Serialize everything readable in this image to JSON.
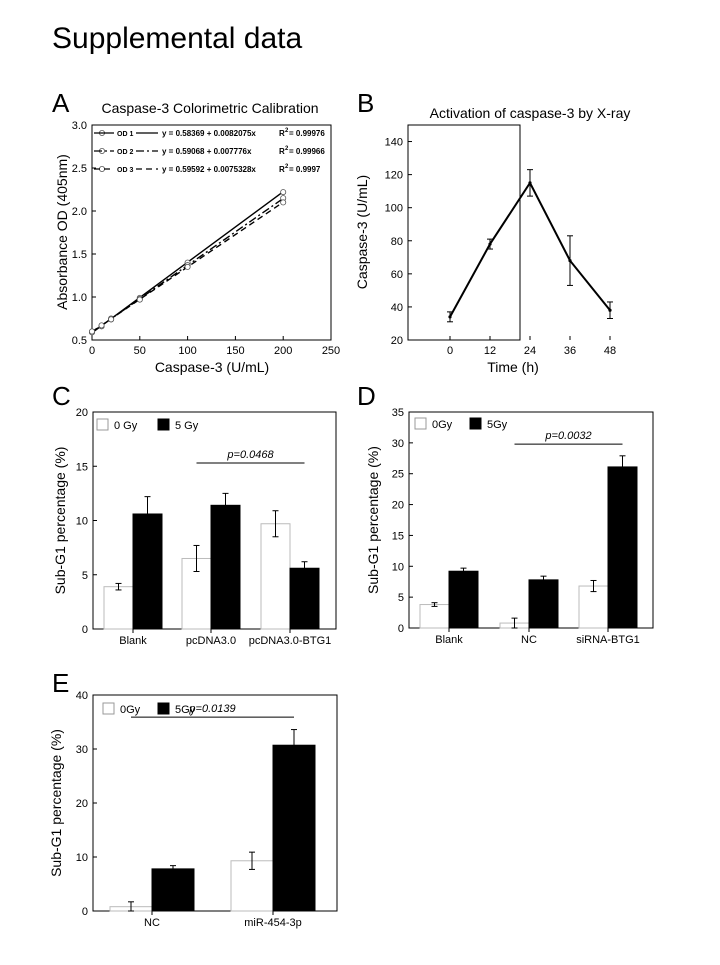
{
  "page_title": "Supplemental data",
  "chart_data": [
    {
      "panel": "A",
      "type": "scatter",
      "title": "Caspase-3 Colorimetric Calibration",
      "xlabel": "Caspase-3 (U/mL)",
      "ylabel": "Absorbance OD (405nm)",
      "xlim": [
        0,
        250
      ],
      "ylim": [
        0.5,
        3.0
      ],
      "xticks": [
        "0",
        "50",
        "100",
        "150",
        "200",
        "250"
      ],
      "yticks": [
        "0.5",
        "1.0",
        "1.5",
        "2.0",
        "2.5",
        "3.0"
      ],
      "grid": false,
      "legend_position": "top-left",
      "x": [
        0,
        10,
        20,
        50,
        100,
        200
      ],
      "series": [
        {
          "name": "OD 1",
          "equation": "y = 0.58369 + 0.0082075x",
          "r2": "R",
          "r2_sup": "2",
          "r2_value": "= 0.99976",
          "dash": "",
          "intercept": 0.58369,
          "slope": 0.0082075,
          "values": [
            0.59,
            0.66,
            0.75,
            0.99,
            1.4,
            2.22
          ]
        },
        {
          "name": "OD 2",
          "equation": "y = 0.59068 + 0.007776x",
          "r2": "R",
          "r2_sup": "2",
          "r2_value": "= 0.99966",
          "dash": "8 3 2 3",
          "intercept": 0.59068,
          "slope": 0.007776,
          "values": [
            0.59,
            0.66,
            0.74,
            0.98,
            1.37,
            2.15
          ]
        },
        {
          "name": "OD 3",
          "equation": "y = 0.59592 + 0.0075328x",
          "r2": "R",
          "r2_sup": "2",
          "r2_value": "= 0.9997",
          "dash": "6 4",
          "intercept": 0.59592,
          "slope": 0.0075328,
          "values": [
            0.6,
            0.67,
            0.74,
            0.97,
            1.35,
            2.1
          ]
        }
      ]
    },
    {
      "panel": "B",
      "type": "line",
      "title": "Activation of caspase-3 by X-ray",
      "xlabel": "Time (h)",
      "ylabel": "Caspase-3 (U/mL)",
      "ylim": [
        20,
        150
      ],
      "yticks": [
        "20",
        "40",
        "60",
        "80",
        "100",
        "120",
        "140"
      ],
      "categories": [
        "0",
        "12",
        "24",
        "36",
        "48"
      ],
      "values": [
        34,
        78,
        115,
        68,
        38
      ],
      "errors": [
        3,
        3,
        8,
        15,
        5
      ]
    },
    {
      "panel": "C",
      "type": "bar",
      "xlabel": "",
      "ylabel": "Sub-G1 percentage (%)",
      "ylim": [
        0,
        20
      ],
      "yticks": [
        "0",
        "5",
        "10",
        "15",
        "20"
      ],
      "categories": [
        "Blank",
        "pcDNA3.0",
        "pcDNA3.0-BTG1"
      ],
      "series": [
        {
          "name": "0 Gy",
          "color": "#ffffff",
          "values": [
            3.9,
            6.5,
            9.7
          ],
          "errors": [
            0.3,
            1.2,
            1.2
          ]
        },
        {
          "name": "5 Gy",
          "color": "#000000",
          "values": [
            10.6,
            11.4,
            5.6
          ],
          "errors": [
            1.6,
            1.1,
            0.6
          ]
        }
      ],
      "significance": {
        "label": "p=0.0468",
        "from_group": 1,
        "to_group": 2,
        "at": 15.3
      }
    },
    {
      "panel": "D",
      "type": "bar",
      "xlabel": "",
      "ylabel": "Sub-G1 percentage (%)",
      "ylim": [
        0,
        35
      ],
      "yticks": [
        "0",
        "5",
        "10",
        "15",
        "20",
        "25",
        "30",
        "35"
      ],
      "categories": [
        "Blank",
        "NC",
        "siRNA-BTG1"
      ],
      "series": [
        {
          "name": "0Gy",
          "color": "#ffffff",
          "values": [
            3.8,
            0.8,
            6.8
          ],
          "errors": [
            0.3,
            0.8,
            0.9
          ]
        },
        {
          "name": "5Gy",
          "color": "#000000",
          "values": [
            9.2,
            7.8,
            26.1
          ],
          "errors": [
            0.5,
            0.6,
            1.8
          ]
        }
      ],
      "significance": {
        "label": "p=0.0032",
        "from_group": 1,
        "to_group": 2,
        "at": 29.8
      }
    },
    {
      "panel": "E",
      "type": "bar",
      "xlabel": "",
      "ylabel": "Sub-G1 percentage (%)",
      "ylim": [
        0,
        40
      ],
      "yticks": [
        "0",
        "10",
        "20",
        "30",
        "40"
      ],
      "categories": [
        "NC",
        "miR-454-3p"
      ],
      "series": [
        {
          "name": "0Gy",
          "color": "#ffffff",
          "values": [
            0.8,
            9.3
          ],
          "errors": [
            0.9,
            1.6
          ]
        },
        {
          "name": "5Gy",
          "color": "#000000",
          "values": [
            7.8,
            30.7
          ],
          "errors": [
            0.6,
            2.9
          ]
        }
      ],
      "significance": {
        "label": "p=0.0139",
        "from_group": 0,
        "to_group": 1,
        "at": 35.9
      }
    }
  ]
}
